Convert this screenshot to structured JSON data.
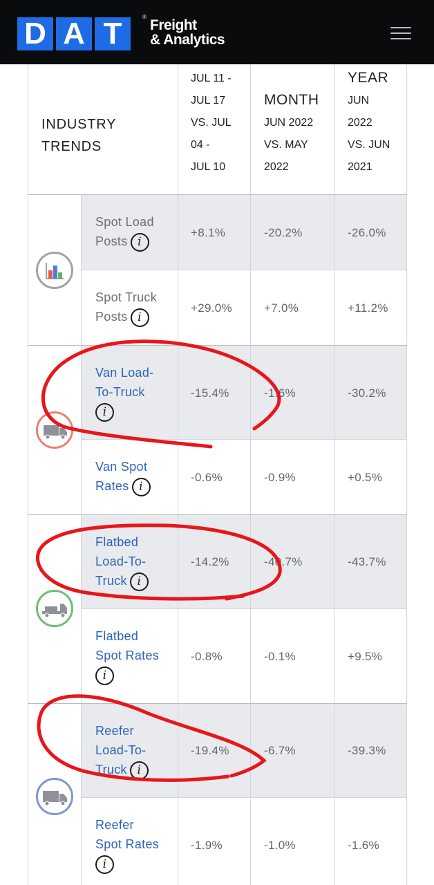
{
  "header": {
    "logo_letters": [
      "D",
      "A",
      "T"
    ],
    "logo_line1": "Freight",
    "logo_line2": "& Analytics",
    "logo_reg": "®"
  },
  "table": {
    "corner_title": [
      "INDUSTRY",
      "TRENDS"
    ],
    "columns": [
      {
        "big": "",
        "dates": [
          "JUL 11 -",
          "JUL 17",
          "VS. JUL",
          "04 -",
          "JUL 10"
        ]
      },
      {
        "big": "MONTH",
        "dates": [
          "JUN 2022",
          "VS. MAY",
          "2022"
        ]
      },
      {
        "big": "YEAR",
        "dates": [
          "JUN",
          "2022",
          "VS. JUN",
          "2021"
        ]
      }
    ],
    "rows": [
      {
        "label": [
          "Spot Load",
          "Posts"
        ],
        "values": [
          "+8.1%",
          "-20.2%",
          "-26.0%"
        ]
      },
      {
        "label": [
          "Spot Truck",
          "Posts"
        ],
        "values": [
          "+29.0%",
          "+7.0%",
          "+11.2%"
        ]
      },
      {
        "label": [
          "Van Load-",
          "To-Truck"
        ],
        "values": [
          "-15.4%",
          "-1.6%",
          "-30.2%"
        ]
      },
      {
        "label": [
          "Van Spot",
          "Rates"
        ],
        "values": [
          "-0.6%",
          "-0.9%",
          "+0.5%"
        ]
      },
      {
        "label": [
          "Flatbed",
          "Load-To-",
          "Truck"
        ],
        "values": [
          "-14.2%",
          "-40.7%",
          "-43.7%"
        ]
      },
      {
        "label": [
          "Flatbed",
          "Spot Rates"
        ],
        "values": [
          "-0.8%",
          "-0.1%",
          "+9.5%"
        ]
      },
      {
        "label": [
          "Reefer",
          "Load-To-",
          "Truck"
        ],
        "values": [
          "-19.4%",
          "-6.7%",
          "-39.3%"
        ]
      },
      {
        "label": [
          "Reefer",
          "Spot Rates"
        ],
        "values": [
          "-1.9%",
          "-1.0%",
          "-1.6%"
        ]
      }
    ],
    "info_glyph": "i"
  },
  "icons": {
    "chart": "bar-chart-icon",
    "van": "van-truck-icon",
    "flatbed": "flatbed-truck-icon",
    "reefer": "reefer-truck-icon"
  },
  "colors": {
    "header_bg": "#0a0b0d",
    "logo_blue": "#1e6be6",
    "link_blue": "#2d63b8",
    "row_shade": "#e8eaee",
    "van_icon": "#e8826e",
    "flatbed_icon": "#6cc070",
    "reefer_icon": "#7c97cf",
    "chart_icon": "#9ea2a8",
    "annotation_red": "#e8161a"
  }
}
